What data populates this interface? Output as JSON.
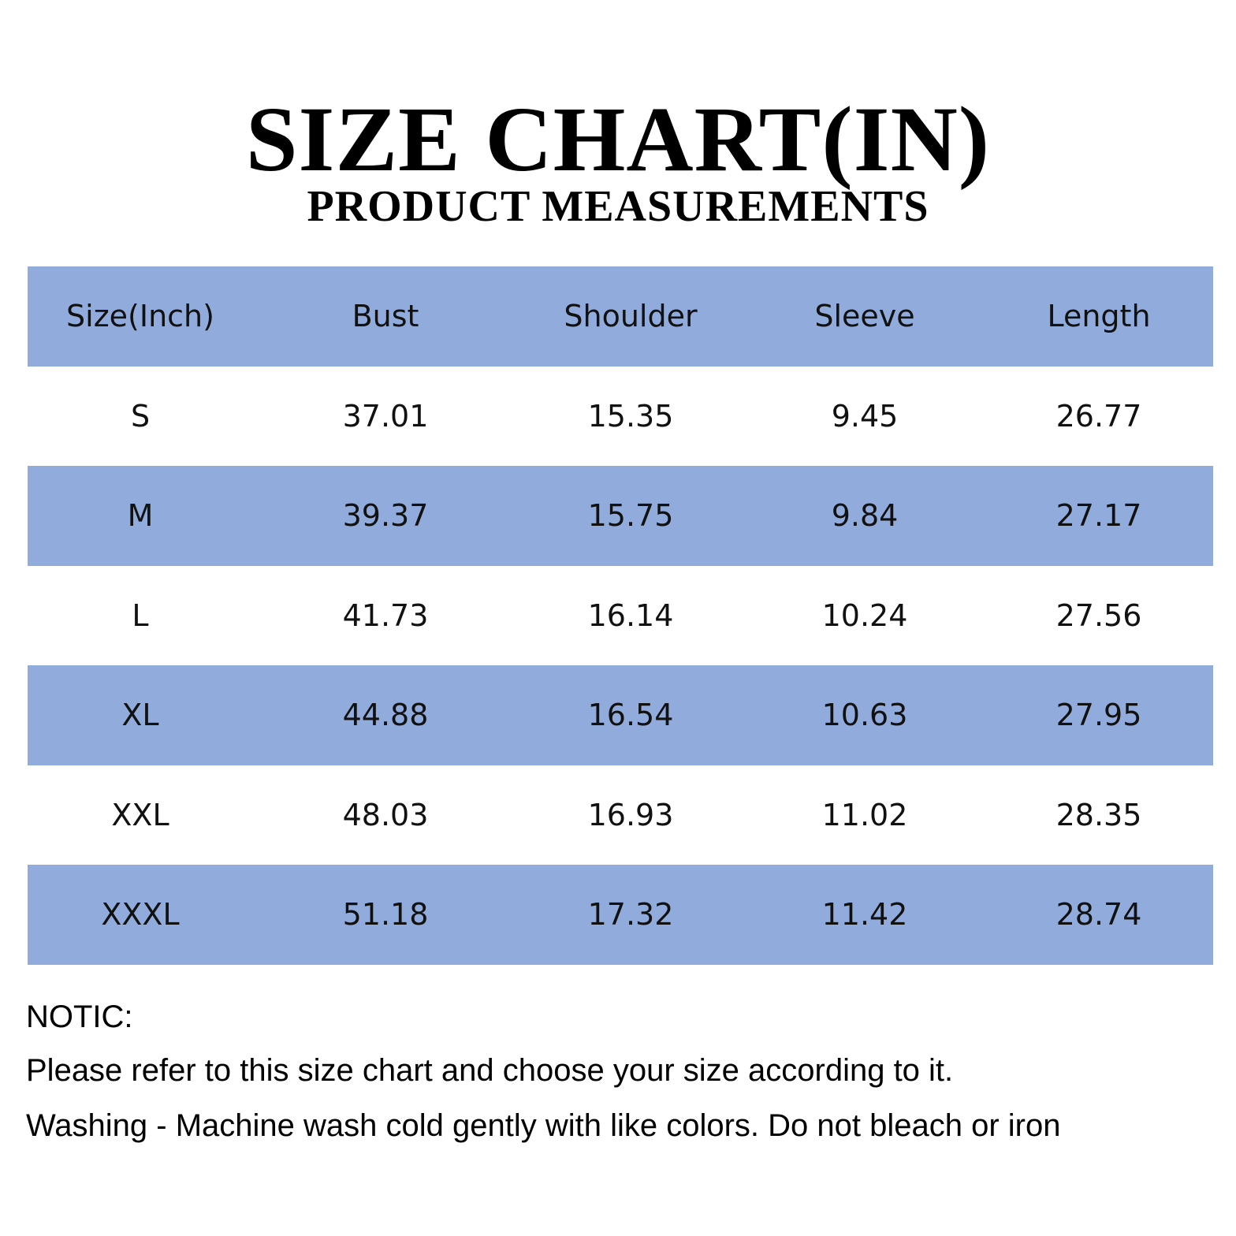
{
  "header": {
    "title": "SIZE CHART(IN)",
    "subtitle": "PRODUCT MEASUREMENTS"
  },
  "table": {
    "columns": [
      "Size(Inch)",
      "Bust",
      "Shoulder",
      "Sleeve",
      "Length"
    ],
    "rows": [
      [
        "S",
        "37.01",
        "15.35",
        "9.45",
        "26.77"
      ],
      [
        "M",
        "39.37",
        "15.75",
        "9.84",
        "27.17"
      ],
      [
        "L",
        "41.73",
        "16.14",
        "10.24",
        "27.56"
      ],
      [
        "XL",
        "44.88",
        "16.54",
        "10.63",
        "27.95"
      ],
      [
        "XXL",
        "48.03",
        "16.93",
        "11.02",
        "28.35"
      ],
      [
        "XXXL",
        "51.18",
        "17.32",
        "11.42",
        "28.74"
      ]
    ]
  },
  "notes": {
    "label": "NOTIC:",
    "lines": [
      "Please refer to this size chart and choose your size according to it.",
      "Washing - Machine wash cold gently with like colors. Do not bleach or iron"
    ]
  }
}
